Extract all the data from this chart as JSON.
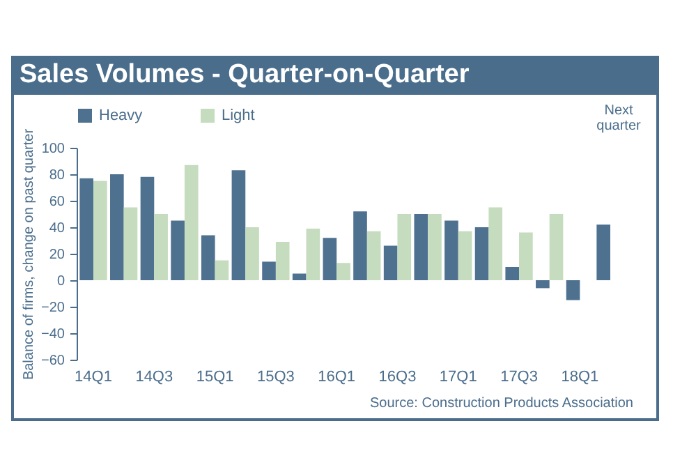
{
  "chart_data": {
    "type": "bar",
    "title": "Sales Volumes - Quarter-on-Quarter",
    "ylabel": "Balance of firms, change on past quarter",
    "categories": [
      "14Q1",
      null,
      "14Q3",
      null,
      "15Q1",
      null,
      "15Q3",
      null,
      "16Q1",
      null,
      "16Q3",
      null,
      "17Q1",
      null,
      "17Q3",
      null,
      "18Q1",
      null
    ],
    "series": [
      {
        "name": "Heavy",
        "color": "#4f7190",
        "values": [
          77,
          80,
          78,
          45,
          34,
          83,
          14,
          5,
          32,
          52,
          26,
          50,
          45,
          40,
          10,
          -6,
          -15,
          42
        ]
      },
      {
        "name": "Light",
        "color": "#c5dcbf",
        "values": [
          75,
          55,
          50,
          87,
          15,
          40,
          29,
          39,
          13,
          37,
          50,
          50,
          37,
          55,
          36,
          50,
          null,
          null
        ]
      }
    ],
    "ylim": [
      -60,
      100
    ],
    "yticks": [
      -60,
      -40,
      -20,
      0,
      20,
      40,
      60,
      80,
      100
    ],
    "grid": false,
    "legend": "top",
    "annotations": [
      "Next quarter",
      "Source: Construction Products Association"
    ]
  }
}
